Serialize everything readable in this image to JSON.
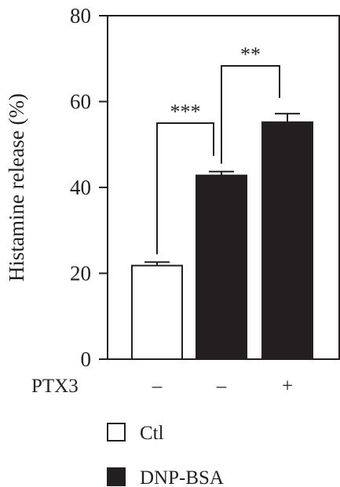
{
  "chart_data": {
    "type": "bar",
    "ylabel": "Histamine release (%)",
    "ylim": [
      0,
      80
    ],
    "yticks": [
      0,
      20,
      40,
      60,
      80
    ],
    "ytick_labels": [
      "0",
      "20",
      "40",
      "60",
      "80"
    ],
    "bars": [
      {
        "treatment": "Ctl",
        "ptx3": "–",
        "value": 21.8,
        "error": 0.8
      },
      {
        "treatment": "DNP-BSA",
        "ptx3": "–",
        "value": 42.8,
        "error": 0.9
      },
      {
        "treatment": "DNP-BSA",
        "ptx3": "+",
        "value": 55.2,
        "error": 2.0
      }
    ],
    "row_label": "PTX3",
    "significance": [
      {
        "from": 0,
        "to": 1,
        "label": "***"
      },
      {
        "from": 1,
        "to": 2,
        "label": "**"
      }
    ],
    "legend": [
      {
        "label": "Ctl",
        "color": "#ffffff"
      },
      {
        "label": "DNP-BSA",
        "color": "#231f20"
      }
    ],
    "legend_position": "bottom",
    "colors": {
      "ink": "#231f20",
      "open_fill": "#ffffff",
      "filled": "#231f20"
    },
    "grid": false
  }
}
